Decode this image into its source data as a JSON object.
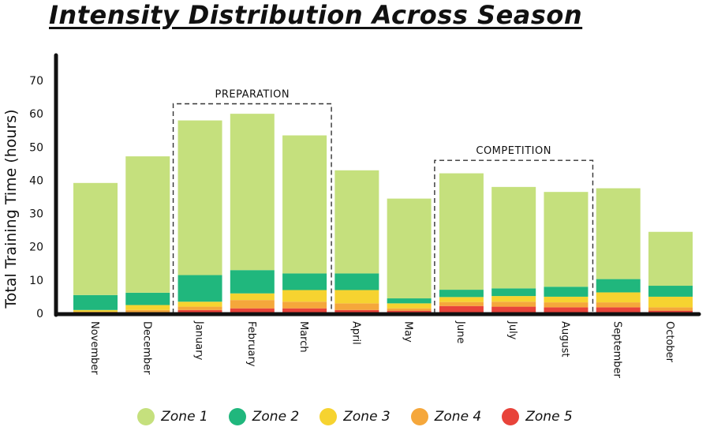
{
  "chart_data": {
    "type": "bar",
    "stacked": true,
    "title": "Intensity Distribution Across Season",
    "ylabel": "Total Training Time (hours)",
    "xlabel": "",
    "ylim": [
      0,
      70
    ],
    "yticks": [
      0,
      10,
      20,
      30,
      40,
      50,
      60,
      70
    ],
    "grid": false,
    "legend_position": "bottom",
    "categories": [
      "November",
      "December",
      "January",
      "February",
      "March",
      "April",
      "May",
      "June",
      "July",
      "August",
      "September",
      "October"
    ],
    "series": [
      {
        "name": "Zone 5",
        "color": "#e8433a",
        "values": [
          0.2,
          0.3,
          1.0,
          1.5,
          1.5,
          1.0,
          0.8,
          2.2,
          2.0,
          1.8,
          1.8,
          0.8
        ]
      },
      {
        "name": "Zone 4",
        "color": "#f5a73b",
        "values": [
          0.3,
          0.7,
          1.0,
          2.5,
          2.0,
          2.0,
          0.7,
          1.2,
          1.5,
          1.5,
          1.5,
          1.0
        ]
      },
      {
        "name": "Zone 3",
        "color": "#f6d330",
        "values": [
          0.5,
          1.5,
          1.5,
          2.0,
          3.5,
          4.0,
          1.5,
          1.5,
          1.7,
          1.7,
          3.0,
          3.2
        ]
      },
      {
        "name": "Zone 2",
        "color": "#20b77d",
        "values": [
          4.5,
          3.7,
          8.0,
          7.0,
          5.0,
          5.0,
          1.5,
          2.2,
          2.3,
          3.0,
          4.0,
          3.3
        ]
      },
      {
        "name": "Zone 1",
        "color": "#c5e07d",
        "values": [
          33.7,
          41.0,
          46.5,
          47.0,
          41.5,
          31.0,
          30.0,
          35.0,
          30.5,
          28.5,
          27.3,
          16.2
        ]
      }
    ],
    "legend_order": [
      "Zone 1",
      "Zone 2",
      "Zone 3",
      "Zone 4",
      "Zone 5"
    ],
    "annotations": [
      {
        "label": "PREPARATION",
        "from": "January",
        "to": "March",
        "top_value": 63
      },
      {
        "label": "COMPETITION",
        "from": "June",
        "to": "August",
        "top_value": 46
      }
    ]
  }
}
